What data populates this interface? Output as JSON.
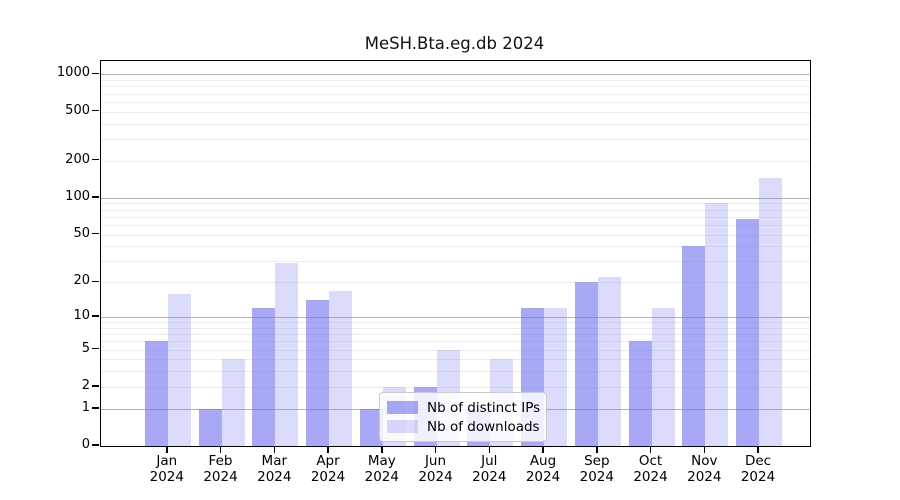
{
  "title": "MeSH.Bta.eg.db 2024",
  "chart_data": {
    "type": "bar",
    "title": "MeSH.Bta.eg.db 2024",
    "categories": [
      "Jan",
      "Feb",
      "Mar",
      "Apr",
      "May",
      "Jun",
      "Jul",
      "Aug",
      "Sep",
      "Oct",
      "Nov",
      "Dec"
    ],
    "year_label": "2024",
    "series": [
      {
        "name": "Nb of distinct IPs",
        "color": "rgba(114,114,242,0.62)",
        "values": [
          6,
          1,
          12,
          14,
          1,
          2,
          1,
          12,
          20,
          6,
          40,
          67
        ]
      },
      {
        "name": "Nb of downloads",
        "color": "rgba(114,114,242,0.26)",
        "values": [
          16,
          4,
          29,
          17,
          2,
          5,
          4,
          12,
          22,
          12,
          91,
          144
        ]
      }
    ],
    "y_ticks": [
      0,
      1,
      2,
      5,
      10,
      20,
      50,
      100,
      200,
      500,
      1000
    ],
    "y_major_gridlines": [
      1,
      10,
      100,
      1000
    ],
    "y_scale": "log1p",
    "ylim": [
      0,
      1130
    ],
    "grid": true,
    "legend_position": "inside-bottom-center",
    "colors": {
      "major_grid": "#b4b4b4",
      "minor_grid": "#ececec",
      "axis": "#000000",
      "background": "#ffffff"
    }
  }
}
